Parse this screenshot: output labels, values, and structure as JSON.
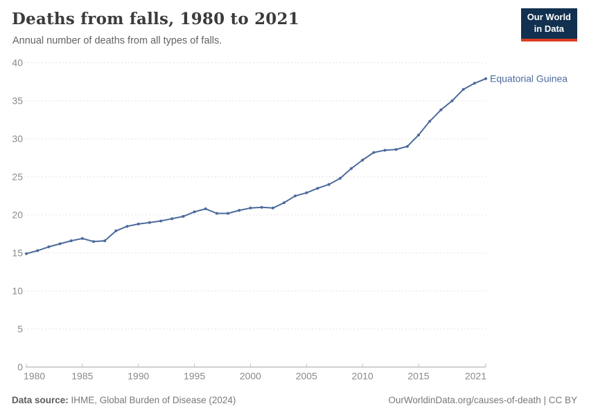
{
  "header": {
    "title": "Deaths from falls, 1980 to 2021",
    "subtitle": "Annual number of deaths from all types of falls."
  },
  "logo": {
    "line1": "Our World",
    "line2": "in Data"
  },
  "chart_data": {
    "type": "line",
    "title": "Deaths from falls, 1980 to 2021",
    "xlabel": "",
    "ylabel": "",
    "x": [
      1980,
      1981,
      1982,
      1983,
      1984,
      1985,
      1986,
      1987,
      1988,
      1989,
      1990,
      1991,
      1992,
      1993,
      1994,
      1995,
      1996,
      1997,
      1998,
      1999,
      2000,
      2001,
      2002,
      2003,
      2004,
      2005,
      2006,
      2007,
      2008,
      2009,
      2010,
      2011,
      2012,
      2013,
      2014,
      2015,
      2016,
      2017,
      2018,
      2019,
      2020,
      2021
    ],
    "series": [
      {
        "name": "Equatorial Guinea",
        "color": "#4c6a9c",
        "values": [
          14.9,
          15.3,
          15.8,
          16.2,
          16.6,
          16.9,
          16.5,
          16.6,
          17.9,
          18.5,
          18.8,
          19.0,
          19.2,
          19.5,
          19.8,
          20.4,
          20.8,
          20.2,
          20.2,
          20.6,
          20.9,
          21.0,
          20.9,
          21.6,
          22.5,
          22.9,
          23.5,
          24.0,
          24.8,
          26.1,
          27.2,
          28.2,
          28.5,
          28.6,
          29.0,
          30.5,
          32.3,
          33.8,
          35.0,
          36.5,
          37.3,
          37.9
        ]
      }
    ],
    "xlim": [
      1980,
      2021
    ],
    "ylim": [
      0,
      40
    ],
    "x_ticks": [
      1980,
      1985,
      1990,
      1995,
      2000,
      2005,
      2010,
      2015,
      2021
    ],
    "y_ticks": [
      0,
      5,
      10,
      15,
      20,
      25,
      30,
      35,
      40
    ],
    "grid": "horizontal-dashed",
    "legend_position": "end-of-line-label"
  },
  "colors": {
    "line": "#4c6a9c",
    "entity_label": "#4c6a9c",
    "grid": "#e0e0e0",
    "axis": "#a3a3a3",
    "tick": "#bdbdbd",
    "tick_label": "#8a8a8a"
  },
  "footer": {
    "source_label": "Data source:",
    "source_text": " IHME, Global Burden of Disease (2024)",
    "link_text": "OurWorldinData.org/causes-of-death | CC BY"
  }
}
